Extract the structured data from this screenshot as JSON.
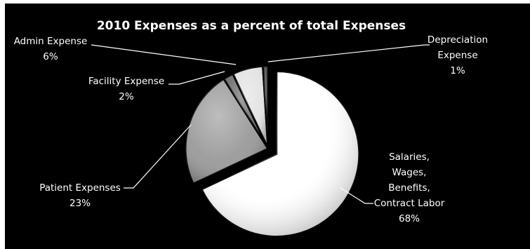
{
  "chart_data": {
    "type": "pie",
    "title": "2010 Expenses as a percent of total Expenses",
    "slices": [
      {
        "label_lines": [
          "Salaries,",
          "Wages,",
          "Benefits,",
          "Contract Labor"
        ],
        "percent_text": "68%",
        "value": 68,
        "color": "#ffffff"
      },
      {
        "label_lines": [
          "Patient Expenses"
        ],
        "percent_text": "23%",
        "value": 23,
        "color": "#9a9a9a"
      },
      {
        "label_lines": [
          "Facility Expense"
        ],
        "percent_text": "2%",
        "value": 2,
        "color": "#6b6b6b"
      },
      {
        "label_lines": [
          "Admin Expense"
        ],
        "percent_text": "6%",
        "value": 6,
        "color": "#e2e2e2"
      },
      {
        "label_lines": [
          "Depreciation",
          "Expense"
        ],
        "percent_text": "1%",
        "value": 1,
        "color": "#4a4a4a"
      }
    ],
    "legend": "none",
    "background_color": "#000000",
    "text_color": "#ffffff"
  }
}
